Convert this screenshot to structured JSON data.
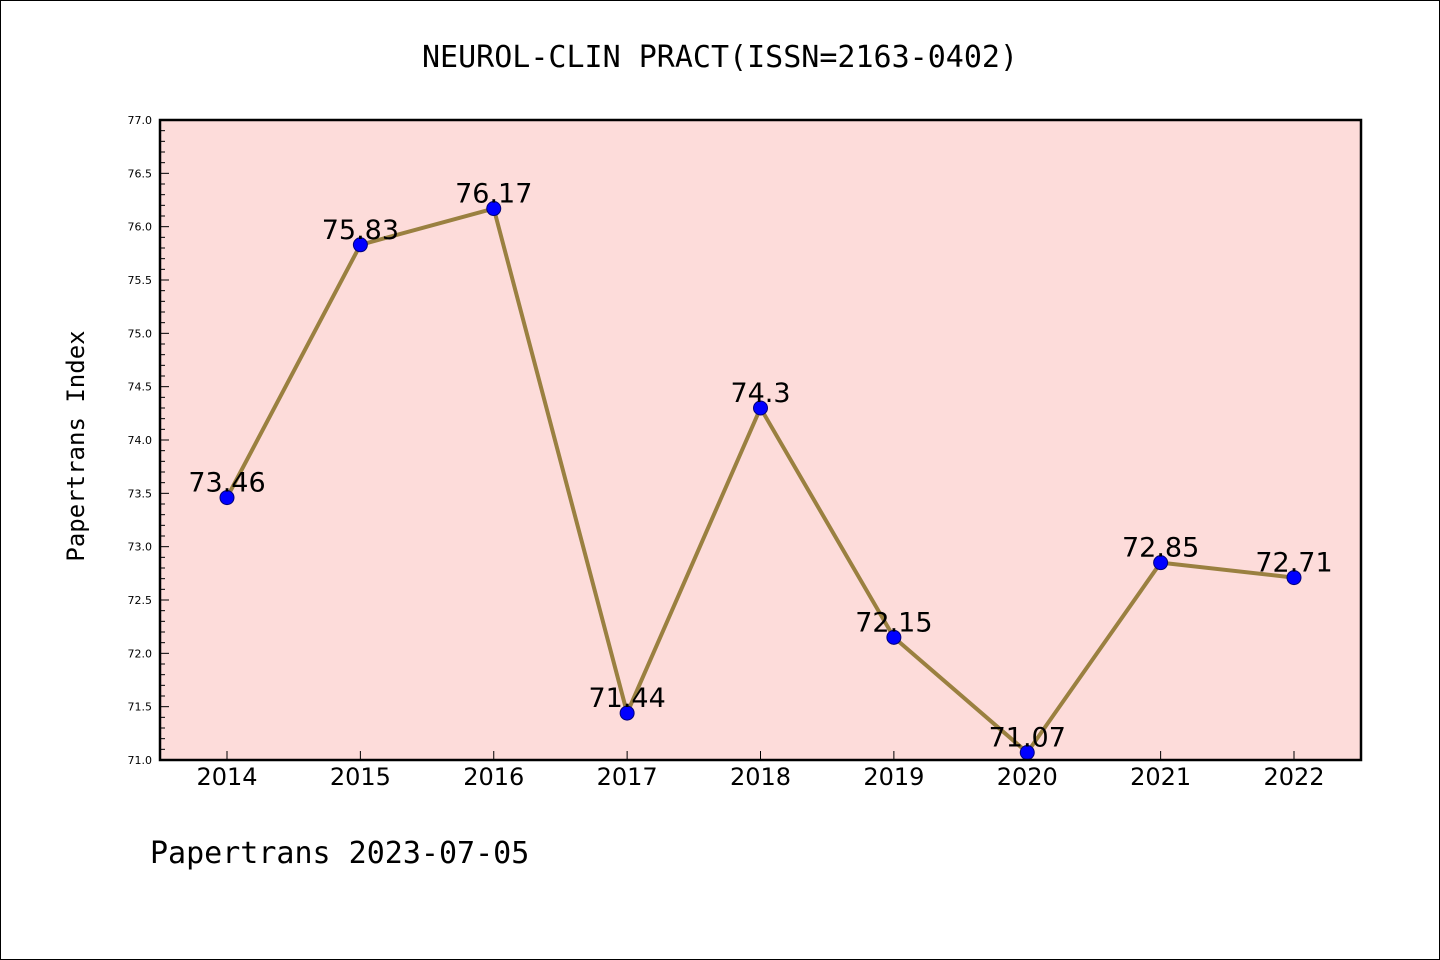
{
  "chart_data": {
    "type": "line",
    "title": "NEUROL-CLIN PRACT(ISSN=2163-0402)",
    "xlabel": "",
    "ylabel": "Papertrans Index",
    "categories": [
      "2014",
      "2015",
      "2016",
      "2017",
      "2018",
      "2019",
      "2020",
      "2021",
      "2022"
    ],
    "values": [
      73.46,
      75.83,
      76.17,
      71.44,
      74.3,
      72.15,
      71.07,
      72.85,
      72.71
    ],
    "data_labels": [
      "73.46",
      "75.83",
      "76.17",
      "71.44",
      "74.3",
      "72.15",
      "71.07",
      "72.85",
      "72.71"
    ],
    "ylim": [
      71.0,
      77.0
    ],
    "yticks": [
      "71.0",
      "71.5",
      "72.0",
      "72.5",
      "73.0",
      "73.5",
      "74.0",
      "74.5",
      "75.0",
      "75.5",
      "76.0",
      "76.5",
      "77.0"
    ],
    "grid": false,
    "colors": {
      "plot_background": "#fddcda",
      "line": "#9a8040",
      "marker": "#0000ff",
      "marker_edge": "#00007a"
    }
  },
  "footer": "Papertrans 2023-07-05"
}
